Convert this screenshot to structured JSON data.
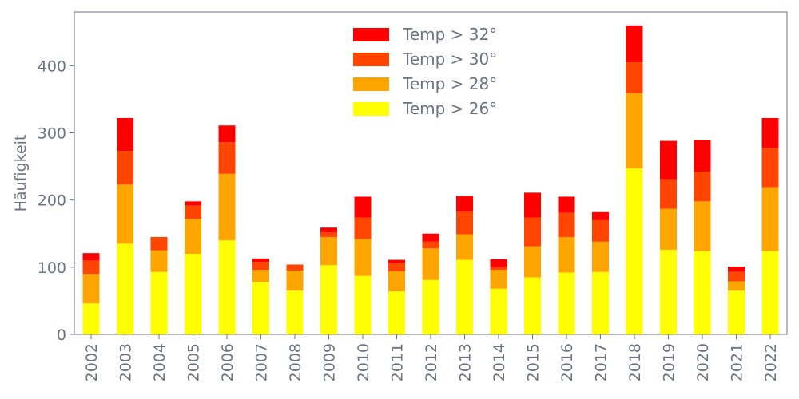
{
  "chart_data": {
    "type": "bar",
    "stacked": true,
    "title": "",
    "xlabel": "",
    "ylabel": "Häufigkeit",
    "ylim": [
      0,
      480
    ],
    "yticks": [
      0,
      100,
      200,
      300,
      400
    ],
    "grid": false,
    "legend_position": "top-center",
    "categories": [
      "2002",
      "2003",
      "2004",
      "2005",
      "2006",
      "2007",
      "2008",
      "2009",
      "2010",
      "2011",
      "2012",
      "2013",
      "2014",
      "2015",
      "2016",
      "2017",
      "2018",
      "2019",
      "2020",
      "2021",
      "2022"
    ],
    "series": [
      {
        "name": "Temp > 26°",
        "color": "#ffff00",
        "values": [
          46,
          135,
          93,
          120,
          140,
          78,
          65,
          103,
          87,
          64,
          81,
          111,
          68,
          85,
          92,
          93,
          247,
          126,
          124,
          65,
          124
        ]
      },
      {
        "name": "Temp > 28°",
        "color": "#ffa500",
        "values": [
          44,
          88,
          32,
          52,
          99,
          18,
          30,
          42,
          55,
          30,
          47,
          38,
          28,
          46,
          53,
          45,
          112,
          61,
          74,
          14,
          95
        ]
      },
      {
        "name": "Temp > 30°",
        "color": "#ff4500",
        "values": [
          20,
          50,
          20,
          20,
          47,
          12,
          9,
          7,
          32,
          12,
          10,
          34,
          4,
          43,
          36,
          32,
          46,
          44,
          44,
          14,
          59
        ]
      },
      {
        "name": "Temp > 32°",
        "color": "#ff0000",
        "values": [
          11,
          49,
          0,
          6,
          25,
          5,
          0,
          7,
          31,
          5,
          12,
          23,
          12,
          37,
          24,
          12,
          55,
          57,
          47,
          8,
          44
        ]
      }
    ]
  }
}
